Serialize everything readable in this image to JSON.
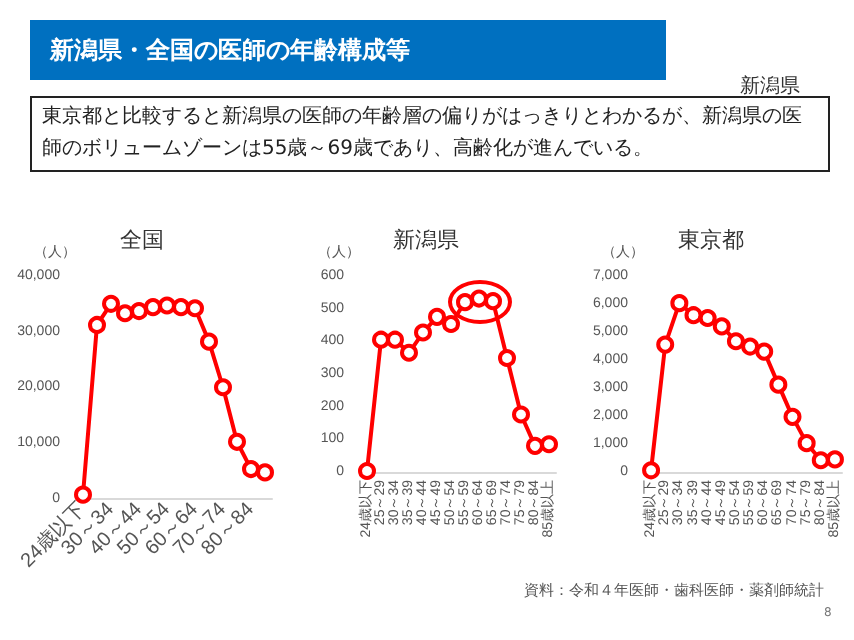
{
  "chart_data": [
    {
      "type": "line",
      "title": "全国",
      "ylabel": "（人）",
      "categories": [
        "24歳以下",
        null,
        "30～34",
        null,
        "40～44",
        null,
        "50～54",
        null,
        "60～64",
        null,
        "70～74",
        null,
        "80～84",
        null
      ],
      "series": [
        {
          "color": "#ff0000",
          "values": [
            700,
            31200,
            35000,
            33300,
            33700,
            34400,
            34700,
            34400,
            34200,
            28200,
            20000,
            10200,
            5300,
            4700
          ]
        }
      ],
      "ylim": [
        0,
        40000
      ],
      "yticks": [
        0,
        {
          "value": 10000,
          "label": "10,000"
        },
        {
          "value": 20000,
          "label": "20,000"
        },
        {
          "value": 30000,
          "label": "30,000"
        },
        {
          "value": 40000,
          "label": "40,000"
        }
      ],
      "marker": "circle",
      "grid": false,
      "annotations": [
        "新潟県・全国の医師の年齢構成等",
        "東京都と比較すると新潟県の医師の年齢層の偏りがはっきりとわかるが、新潟県の医師のボリュームゾーンは55歳～69歳であり、高齢化が進んでいる。",
        "新潟県",
        "資料：令和４年医師・歯科医師・薬剤師統計",
        "8"
      ]
    },
    {
      "type": "line",
      "title": "新潟県",
      "ylabel": "（人）",
      "categories": [
        "24歳以下",
        "25～29",
        "30～34",
        "35～39",
        "40～44",
        "45～49",
        "50～54",
        "55～59",
        "60～64",
        "65～69",
        "70～74",
        "75～79",
        "80～84",
        "85歳以上"
      ],
      "series": [
        {
          "color": "#ff0000",
          "values": [
            3,
            405,
            405,
            365,
            427,
            475,
            453,
            520,
            531,
            523,
            349,
            176,
            80,
            85
          ]
        }
      ],
      "ylim": [
        0,
        600
      ],
      "yticks": [
        0,
        100,
        200,
        300,
        400,
        500,
        600
      ],
      "marker": "circle",
      "grid": false
    },
    {
      "type": "line",
      "title": "東京都",
      "ylabel": "（人）",
      "categories": [
        "24歳以下",
        "25～29",
        "30～34",
        "35～39",
        "40～44",
        "45～49",
        "50～54",
        "55～59",
        "60～64",
        "65～69",
        "70～74",
        "75～79",
        "80～84",
        "85歳以上"
      ],
      "series": [
        {
          "color": "#ff0000",
          "values": [
            60,
            4550,
            6030,
            5600,
            5500,
            5200,
            4670,
            4480,
            4300,
            3120,
            1970,
            1030,
            420,
            450
          ]
        }
      ],
      "ylim": [
        0,
        7000
      ],
      "yticks": [
        0,
        {
          "value": 1000,
          "label": "1,000"
        },
        {
          "value": 2000,
          "label": "2,000"
        },
        {
          "value": 3000,
          "label": "3,000"
        },
        {
          "value": 4000,
          "label": "4,000"
        },
        {
          "value": 5000,
          "label": "5,000"
        },
        {
          "value": 6000,
          "label": "6,000"
        },
        {
          "value": 7000,
          "label": "7,000"
        }
      ],
      "marker": "circle",
      "grid": false
    }
  ]
}
